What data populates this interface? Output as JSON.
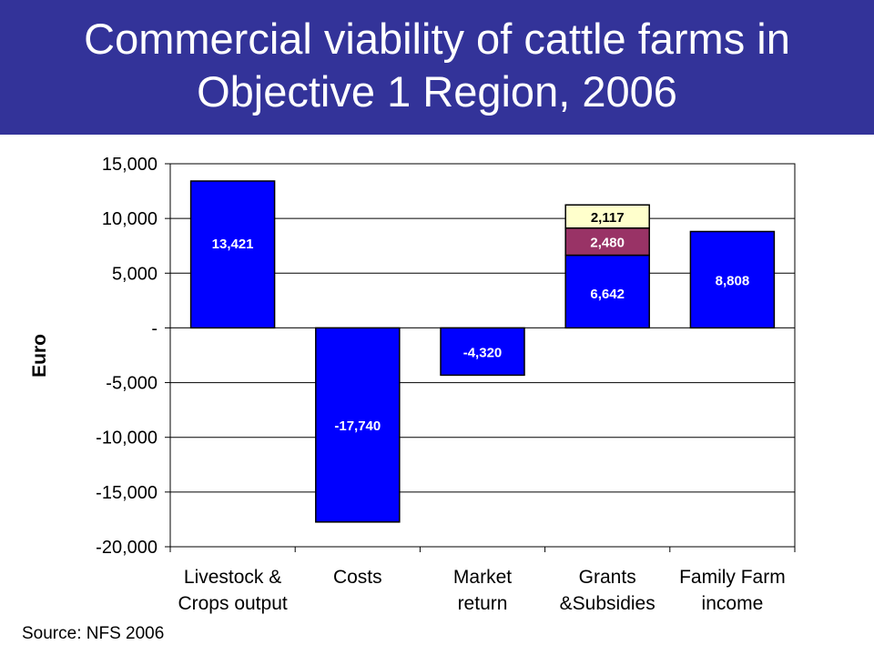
{
  "slide": {
    "title_line1": "Commercial viability of cattle farms in",
    "title_line2": "Objective 1 Region, 2006",
    "source": "Source:  NFS 2006"
  },
  "colors": {
    "title_bg": "#333399",
    "bar_blue": "#0000FF",
    "grants_maroon": "#993366",
    "grants_cream": "#FFFFCC"
  },
  "chart_data": {
    "type": "bar",
    "subtype": "waterfall",
    "title": "",
    "xlabel": "",
    "ylabel": "Euro",
    "ylim": [
      -20000,
      15000
    ],
    "yticks": [
      {
        "value": 15000,
        "label": "15,000"
      },
      {
        "value": 10000,
        "label": "10,000"
      },
      {
        "value": 5000,
        "label": "5,000"
      },
      {
        "value": 0,
        "label": "-"
      },
      {
        "value": -5000,
        "label": "-5,000"
      },
      {
        "value": -10000,
        "label": "-10,000"
      },
      {
        "value": -15000,
        "label": "-15,000"
      },
      {
        "value": -20000,
        "label": "-20,000"
      }
    ],
    "grid": true,
    "legend": "none",
    "categories": [
      {
        "lines": [
          "Livestock &",
          "Crops output"
        ]
      },
      {
        "lines": [
          "Costs"
        ]
      },
      {
        "lines": [
          "Market",
          "return"
        ]
      },
      {
        "lines": [
          "Grants",
          "&Subsidies"
        ]
      },
      {
        "lines": [
          "Family Farm",
          "income"
        ]
      }
    ],
    "bars": [
      {
        "category": 0,
        "segments": [
          {
            "value": 13421,
            "label": "13,421",
            "color": "#0000FF",
            "label_color": "#ffffff"
          }
        ]
      },
      {
        "category": 1,
        "segments": [
          {
            "value": -17740,
            "label": "-17,740",
            "color": "#0000FF",
            "label_color": "#ffffff"
          }
        ]
      },
      {
        "category": 2,
        "segments": [
          {
            "value": -4320,
            "label": "-4,320",
            "color": "#0000FF",
            "label_color": "#ffffff"
          }
        ]
      },
      {
        "category": 3,
        "segments": [
          {
            "value": 6642,
            "label": "6,642",
            "color": "#0000FF",
            "label_color": "#ffffff"
          },
          {
            "value": 2480,
            "label": "2,480",
            "color": "#993366",
            "label_color": "#ffffff"
          },
          {
            "value": 2117,
            "label": "2,117",
            "color": "#FFFFCC",
            "label_color": "#000000"
          }
        ]
      },
      {
        "category": 4,
        "segments": [
          {
            "value": 8808,
            "label": "8,808",
            "color": "#0000FF",
            "label_color": "#ffffff"
          }
        ]
      }
    ]
  }
}
